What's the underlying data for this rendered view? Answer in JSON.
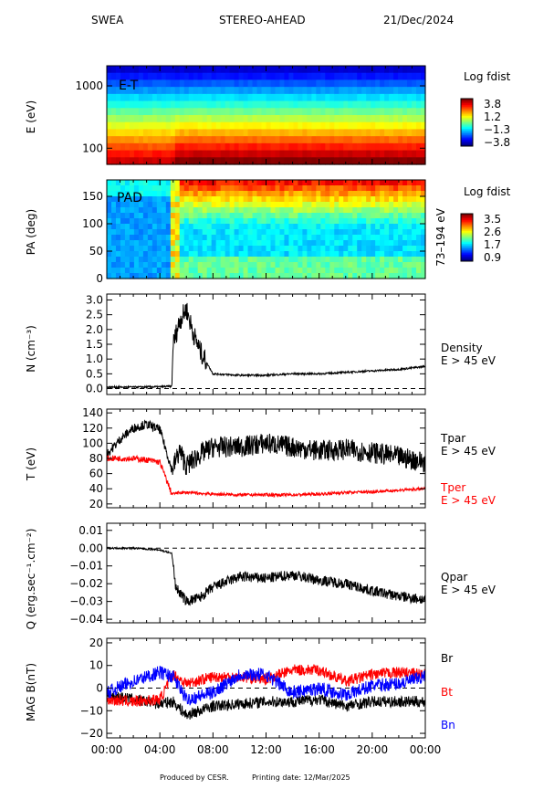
{
  "header": {
    "instrument": "SWEA",
    "spacecraft": "STEREO-AHEAD",
    "date": "21/Dec/2024"
  },
  "footer": {
    "produced": "Produced by CESR.",
    "printing": "Printing date: 12/Mar/2025"
  },
  "colors": {
    "black": "#000000",
    "red": "#ff0000",
    "blue": "#0000ff"
  },
  "panels": {
    "et": {
      "tag": "E-T",
      "ylabel": "E (eV)",
      "yticks": [
        "1000",
        "100"
      ],
      "cbar_title": "Log fdist",
      "cbar_ticks": [
        "3.8",
        "1.2",
        "−1.3",
        "−3.8"
      ]
    },
    "pad": {
      "tag": "PAD",
      "ylabel": "PA (deg)",
      "yticks": [
        "150",
        "100",
        "50",
        "0"
      ],
      "right_label": "73–194 eV",
      "cbar_title": "Log fdist",
      "cbar_ticks": [
        "3.5",
        "2.6",
        "1.7",
        "0.9"
      ]
    },
    "density": {
      "ylabel": "N (cm⁻³)",
      "yticks": [
        "3.0",
        "2.5",
        "2.0",
        "1.5",
        "1.0",
        "0.5",
        "0.0"
      ],
      "legend": [
        "Density",
        "E > 45 eV"
      ]
    },
    "temp": {
      "ylabel": "T (eV)",
      "yticks": [
        "140",
        "120",
        "100",
        "80",
        "60",
        "40",
        "20"
      ],
      "legend_par": [
        "Tpar",
        "E > 45 eV"
      ],
      "legend_per": [
        "Tper",
        "E > 45 eV"
      ]
    },
    "qpar": {
      "ylabel": "Q (erg.sec⁻¹.cm⁻²)",
      "yticks": [
        "0.01",
        "0.00",
        "−0.01",
        "−0.02",
        "−0.03",
        "−0.04"
      ],
      "legend": [
        "Qpar",
        "E > 45 eV"
      ]
    },
    "mag": {
      "ylabel": "MAG B(nT)",
      "yticks": [
        "20",
        "10",
        "0",
        "−10",
        "−20"
      ],
      "legend": [
        "Br",
        "Bt",
        "Bn"
      ]
    }
  },
  "xaxis": {
    "ticks": [
      "00:00",
      "04:00",
      "08:00",
      "12:00",
      "16:00",
      "20:00",
      "00:00"
    ]
  },
  "chart_data": [
    {
      "type": "heatmap",
      "title": "E-T",
      "ylabel": "E (eV)",
      "yscale": "log",
      "ylim": [
        55,
        2100
      ],
      "colorbar": {
        "label": "Log fdist",
        "range": [
          -3.8,
          3.8
        ]
      },
      "description_values": {
        "enhancement_start_hour": 4.9
      }
    },
    {
      "type": "heatmap",
      "title": "PAD",
      "ylabel": "PA (deg)",
      "ylim": [
        0,
        180
      ],
      "energy_range": "73–194 eV",
      "colorbar": {
        "label": "Log fdist",
        "range": [
          0.9,
          3.5
        ]
      }
    },
    {
      "type": "line",
      "ylabel": "N (cm⁻³)",
      "ylim": [
        -0.2,
        3.2
      ],
      "series": [
        {
          "name": "Density E > 45 eV",
          "x": [
            0,
            2,
            4,
            4.9,
            5.0,
            5.5,
            6.0,
            6.5,
            7.0,
            7.5,
            8.0,
            10,
            12,
            14,
            16,
            18,
            20,
            22,
            24
          ],
          "values": [
            0.05,
            0.05,
            0.06,
            0.08,
            1.5,
            2.3,
            2.7,
            1.9,
            1.3,
            0.9,
            0.5,
            0.45,
            0.45,
            0.5,
            0.5,
            0.55,
            0.6,
            0.65,
            0.75
          ]
        }
      ]
    },
    {
      "type": "line",
      "ylabel": "T (eV)",
      "ylim": [
        15,
        145
      ],
      "series": [
        {
          "name": "Tpar E > 45 eV",
          "x": [
            0,
            1,
            2,
            3,
            4,
            4.9,
            5.5,
            6,
            7,
            8,
            10,
            12,
            14,
            16,
            18,
            20,
            22,
            24
          ],
          "values": [
            85,
            105,
            120,
            125,
            118,
            65,
            90,
            70,
            85,
            95,
            95,
            100,
            95,
            90,
            92,
            88,
            82,
            75
          ]
        },
        {
          "name": "Tper E > 45 eV",
          "x": [
            0,
            1,
            2,
            3,
            4,
            4.9,
            5.5,
            6,
            7,
            8,
            10,
            12,
            14,
            16,
            18,
            20,
            22,
            24
          ],
          "values": [
            80,
            80,
            80,
            78,
            75,
            33,
            35,
            35,
            34,
            33,
            32,
            32,
            32,
            33,
            35,
            36,
            38,
            40
          ]
        }
      ]
    },
    {
      "type": "line",
      "ylabel": "Q (erg.sec⁻¹.cm⁻²)",
      "ylim": [
        -0.042,
        0.014
      ],
      "series": [
        {
          "name": "Qpar E > 45 eV",
          "x": [
            0,
            2,
            4,
            4.9,
            5.2,
            6,
            7,
            8,
            10,
            12,
            14,
            16,
            18,
            20,
            22,
            24
          ],
          "values": [
            0.0,
            0.0,
            -0.001,
            -0.003,
            -0.022,
            -0.03,
            -0.028,
            -0.022,
            -0.016,
            -0.017,
            -0.015,
            -0.018,
            -0.02,
            -0.024,
            -0.027,
            -0.029
          ]
        }
      ]
    },
    {
      "type": "line",
      "ylabel": "MAG B(nT)",
      "ylim": [
        -22,
        22
      ],
      "series": [
        {
          "name": "Br",
          "x": [
            0,
            2,
            4,
            5,
            6,
            8,
            10,
            12,
            14,
            16,
            18,
            20,
            22,
            24
          ],
          "values": [
            -3,
            -5,
            -7,
            -6,
            -12,
            -8,
            -7,
            -6,
            -6,
            -5,
            -8,
            -6,
            -6,
            -6
          ]
        },
        {
          "name": "Bt",
          "x": [
            0,
            2,
            4,
            5,
            6,
            8,
            10,
            12,
            14,
            16,
            18,
            20,
            22,
            24
          ],
          "values": [
            -5,
            -6,
            -5,
            6,
            2,
            5,
            5,
            4,
            8,
            8,
            3,
            6,
            7,
            6
          ]
        },
        {
          "name": "Bn",
          "x": [
            0,
            2,
            4,
            5,
            6,
            8,
            10,
            12,
            14,
            16,
            18,
            20,
            22,
            24
          ],
          "values": [
            -2,
            3,
            7,
            5,
            -5,
            -2,
            6,
            6,
            -2,
            0,
            -3,
            1,
            2,
            5
          ]
        }
      ]
    }
  ]
}
